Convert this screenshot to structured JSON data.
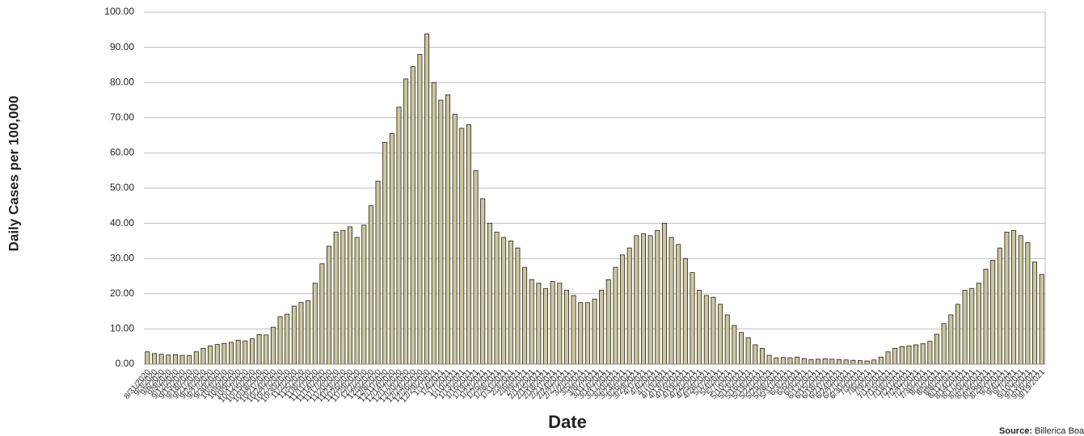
{
  "chart_data": {
    "type": "bar",
    "y_label": "Daily Cases per 100,000",
    "x_label": "Date",
    "source_label": "Source:",
    "source": "Billerica Board",
    "color": "#cbc99b",
    "edge_color": "#2a1a1a",
    "grid": true,
    "ylim": [
      0,
      100
    ],
    "yticks": [
      {
        "value": 0,
        "label": "0.00"
      },
      {
        "value": 10,
        "label": "10.00"
      },
      {
        "value": 20,
        "label": "20.00"
      },
      {
        "value": 30,
        "label": "30.00"
      },
      {
        "value": 40,
        "label": "40.00"
      },
      {
        "value": 50,
        "label": "50.00"
      },
      {
        "value": 60,
        "label": "60.00"
      },
      {
        "value": 70,
        "label": "70.00"
      },
      {
        "value": 80,
        "label": "80.00"
      },
      {
        "value": 90,
        "label": "90.00"
      },
      {
        "value": 100,
        "label": "100.00"
      }
    ],
    "categories": [
      "8/31/2020",
      "9/3/2020",
      "9/6/2020",
      "9/9/2020",
      "9/12/2020",
      "9/15/2020",
      "9/18/2020",
      "9/21/2020",
      "9/24/2020",
      "9/27/2020",
      "9/30/2020",
      "10/3/2020",
      "10/6/2020",
      "10/9/2020",
      "10/12/2020",
      "10/15/2020",
      "10/18/2020",
      "10/21/2020",
      "10/24/2020",
      "10/27/2020",
      "10/30/2020",
      "11/2/2020",
      "11/5/2020",
      "11/8/2020",
      "11/11/2020",
      "11/14/2020",
      "11/17/2020",
      "11/20/2020",
      "11/23/2020",
      "11/26/2020",
      "11/29/2020",
      "12/2/2020",
      "12/5/2020",
      "12/8/2020",
      "12/11/2020",
      "12/14/2020",
      "12/17/2020",
      "12/20/2020",
      "12/23/2020",
      "12/26/2020",
      "12/29/2020",
      "1/1/2021",
      "1/4/2021",
      "1/7/2021",
      "1/10/2021",
      "1/13/2021",
      "1/16/2021",
      "1/19/2021",
      "1/22/2021",
      "1/25/2021",
      "1/28/2021",
      "1/31/2021",
      "2/3/2021",
      "2/6/2021",
      "2/9/2021",
      "2/12/2021",
      "2/15/2021",
      "2/18/2021",
      "2/21/2021",
      "2/24/2021",
      "2/27/2021",
      "3/2/2021",
      "3/5/2021",
      "3/8/2021",
      "3/11/2021",
      "3/14/2021",
      "3/17/2021",
      "3/20/2021",
      "3/23/2021",
      "3/26/2021",
      "3/29/2021",
      "4/1/2021",
      "4/4/2021",
      "4/7/2021",
      "4/10/2021",
      "4/13/2021",
      "4/16/2021",
      "4/19/2021",
      "4/22/2021",
      "4/25/2021",
      "4/28/2021",
      "5/1/2021",
      "5/4/2021",
      "5/7/2021",
      "5/10/2021",
      "5/13/2021",
      "5/16/2021",
      "5/19/2021",
      "5/22/2021",
      "5/25/2021",
      "5/28/2021",
      "5/31/2021",
      "6/3/2021",
      "6/6/2021",
      "6/9/2021",
      "6/12/2021",
      "6/15/2021",
      "6/18/2021",
      "6/21/2021",
      "6/24/2021",
      "6/27/2021",
      "6/30/2021",
      "7/3/2021",
      "7/6/2021",
      "7/9/2021",
      "7/12/2021",
      "7/15/2021",
      "7/18/2021",
      "7/21/2021",
      "7/24/2021",
      "7/27/2021",
      "7/30/2021",
      "8/2/2021",
      "8/5/2021",
      "8/8/2021",
      "8/11/2021",
      "8/14/2021",
      "8/17/2021",
      "8/20/2021",
      "8/23/2021",
      "8/26/2021",
      "8/29/2021",
      "9/1/2021",
      "9/4/2021",
      "9/7/2021",
      "9/10/2021",
      "9/13/2021",
      "9/16/2021",
      "9/19/2021"
    ],
    "values": [
      3.5,
      3.0,
      2.8,
      2.6,
      2.7,
      2.5,
      2.4,
      3.5,
      4.5,
      5.2,
      5.6,
      5.9,
      6.2,
      6.8,
      6.6,
      7.2,
      8.4,
      8.3,
      10.5,
      13.5,
      14.2,
      16.5,
      17.5,
      18.0,
      23.0,
      28.5,
      33.5,
      37.5,
      38.0,
      39.0,
      36.0,
      39.5,
      45.0,
      52.0,
      63.0,
      65.5,
      73.0,
      81.0,
      84.5,
      88.0,
      93.8,
      80.0,
      75.0,
      76.5,
      71.0,
      67.0,
      68.0,
      55.0,
      47.0,
      40.0,
      37.5,
      36.0,
      35.0,
      33.0,
      27.5,
      24.0,
      23.0,
      21.5,
      23.5,
      23.0,
      21.0,
      19.5,
      17.5,
      17.5,
      18.5,
      21.0,
      24.0,
      27.5,
      31.0,
      33.0,
      36.5,
      37.0,
      36.5,
      38.0,
      40.0,
      36.0,
      34.0,
      30.0,
      26.0,
      21.0,
      19.5,
      19.0,
      17.0,
      14.0,
      11.0,
      9.0,
      7.5,
      5.5,
      4.5,
      2.5,
      1.8,
      1.9,
      1.8,
      2.0,
      1.6,
      1.3,
      1.4,
      1.5,
      1.4,
      1.3,
      1.2,
      1.1,
      1.0,
      0.9,
      1.2,
      2.0,
      3.5,
      4.5,
      5.0,
      5.2,
      5.5,
      5.8,
      6.5,
      8.5,
      11.5,
      14.0,
      17.0,
      21.0,
      21.5,
      23.0,
      27.0,
      29.5,
      33.0,
      37.5,
      38.0,
      36.5,
      34.5,
      29.0,
      25.5
    ]
  }
}
